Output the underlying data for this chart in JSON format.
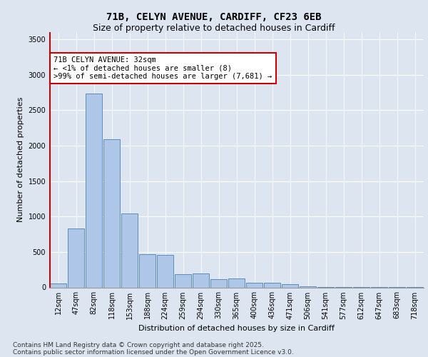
{
  "title_line1": "71B, CELYN AVENUE, CARDIFF, CF23 6EB",
  "title_line2": "Size of property relative to detached houses in Cardiff",
  "xlabel": "Distribution of detached houses by size in Cardiff",
  "ylabel": "Number of detached properties",
  "categories": [
    "12sqm",
    "47sqm",
    "82sqm",
    "118sqm",
    "153sqm",
    "188sqm",
    "224sqm",
    "259sqm",
    "294sqm",
    "330sqm",
    "365sqm",
    "400sqm",
    "436sqm",
    "471sqm",
    "506sqm",
    "541sqm",
    "577sqm",
    "612sqm",
    "647sqm",
    "683sqm",
    "718sqm"
  ],
  "values": [
    60,
    830,
    2730,
    2090,
    1040,
    470,
    460,
    185,
    195,
    120,
    130,
    65,
    65,
    50,
    20,
    10,
    10,
    10,
    5,
    5,
    5
  ],
  "bar_color": "#aec6e8",
  "bar_edge_color": "#5b8db8",
  "highlight_color": "#cc0000",
  "background_color": "#dde6f0",
  "annotation_text": "71B CELYN AVENUE: 32sqm\n← <1% of detached houses are smaller (8)\n>99% of semi-detached houses are larger (7,681) →",
  "annotation_box_color": "#ffffff",
  "annotation_box_edge": "#cc0000",
  "ylim": [
    0,
    3600
  ],
  "yticks": [
    0,
    500,
    1000,
    1500,
    2000,
    2500,
    3000,
    3500
  ],
  "footer_line1": "Contains HM Land Registry data © Crown copyright and database right 2025.",
  "footer_line2": "Contains public sector information licensed under the Open Government Licence v3.0.",
  "title_fontsize": 10,
  "subtitle_fontsize": 9,
  "axis_label_fontsize": 8,
  "tick_fontsize": 7,
  "annotation_fontsize": 7.5,
  "footer_fontsize": 6.5
}
